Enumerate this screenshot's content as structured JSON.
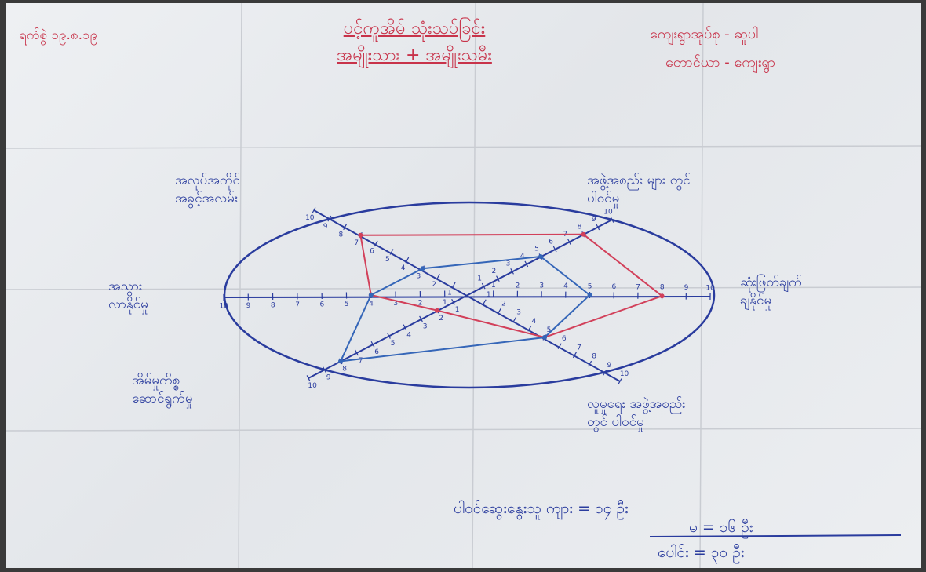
{
  "chart_data": {
    "type": "radar",
    "title": "ပင့်ကူအိမ် သုံးသပ်ခြင်း",
    "subtitle": "အမျိုးသား + အမျိုးသမီး",
    "categories": [
      "ဆုံးဖြတ်ချက်\nချနိုင်မှု",
      "အဖွဲ့အစည်း များ တွင်\nပါဝင်မှု",
      "အလုပ်အကိုင်\nအခွင့်အလမ်း",
      "အသွား\nလာနိုင်မှု",
      "အိမ်မှုကိစ္စ\nဆောင်ရွက်မှု",
      "လူမှုရေး အဖွဲ့အစည်း\nတွင် ပါဝင်မှု"
    ],
    "series": [
      {
        "color": "#d2405a",
        "values": [
          8,
          8,
          7,
          4,
          2,
          5
        ]
      },
      {
        "color": "#3566b8",
        "values": [
          5,
          5,
          3,
          4,
          8,
          5
        ]
      }
    ],
    "rlim": [
      0,
      10
    ],
    "rticks": [
      1,
      2,
      3,
      4,
      5,
      6,
      7,
      8,
      9,
      10
    ]
  },
  "notes": {
    "date": "ရက်စွဲ  ၁၉.၈.၁၉",
    "location": [
      "ကျေးရွာအုပ်စု - ဆူပါ",
      "တောင်ယာ - ကျေးရွာ"
    ],
    "participants": [
      "ပါဝင်ဆွေးနွေးသူ ကျား  =  ၁၄  ဦး",
      "မ  =  ၁၆  ဦး",
      "ပေါင်း  =  ၃၀  ဦး"
    ]
  }
}
